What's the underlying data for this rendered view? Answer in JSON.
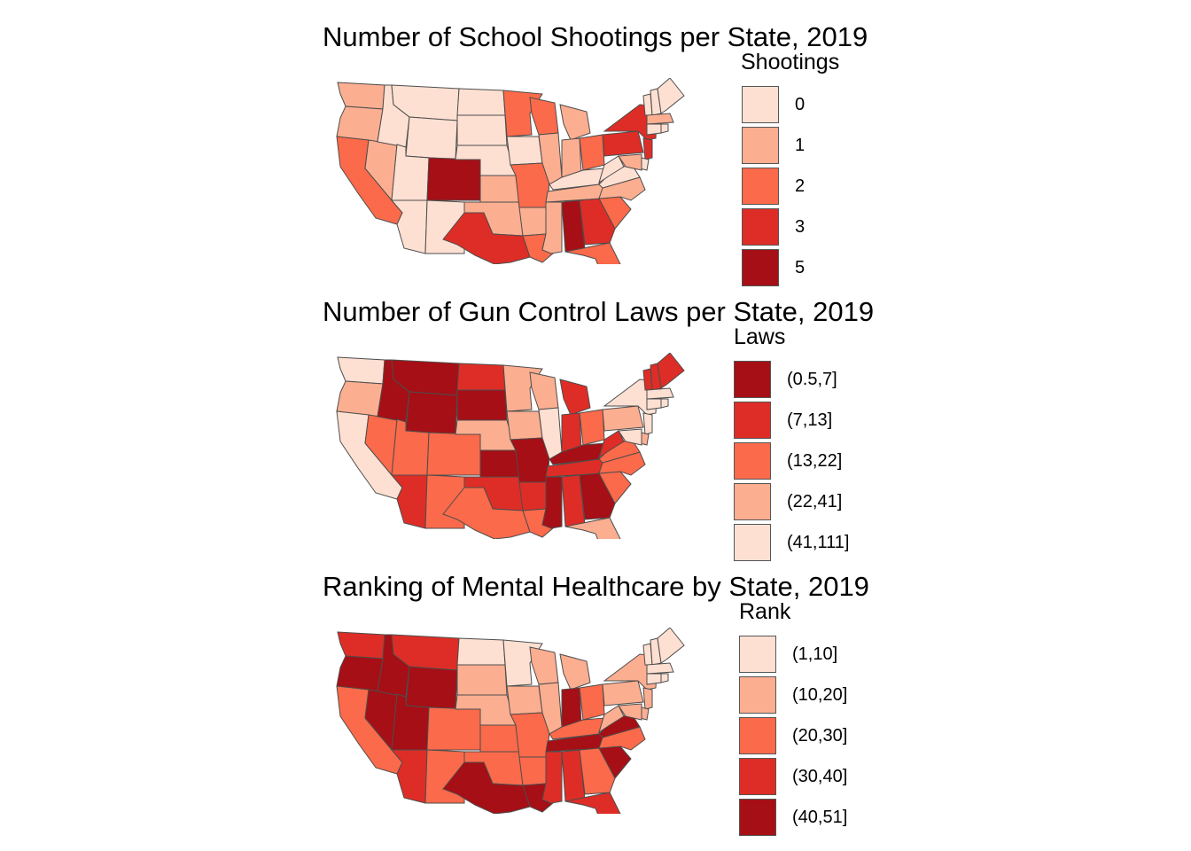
{
  "palette": [
    "#FEE0D2",
    "#FCAE91",
    "#FB6A4A",
    "#DE2D26",
    "#A50F15"
  ],
  "state_border_color": "#4d4d4d",
  "maps": [
    {
      "title": "Number of School Shootings per State, 2019",
      "legend_title": "Shootings",
      "legend": [
        {
          "label": "0",
          "color": "#FEE0D2"
        },
        {
          "label": "1",
          "color": "#FCAE91"
        },
        {
          "label": "2",
          "color": "#FB6A4A"
        },
        {
          "label": "3",
          "color": "#DE2D26"
        },
        {
          "label": "5",
          "color": "#A50F15"
        }
      ],
      "states": {
        "WA": 1,
        "OR": 1,
        "CA": 2,
        "NV": 1,
        "ID": 0,
        "MT": 0,
        "WY": 0,
        "UT": 0,
        "AZ": 0,
        "CO": 5,
        "NM": 0,
        "ND": 0,
        "SD": 0,
        "NE": 0,
        "KS": 1,
        "OK": 1,
        "TX": 3,
        "MN": 2,
        "IA": 0,
        "MO": 2,
        "AR": 1,
        "LA": 2,
        "WI": 2,
        "IL": 1,
        "MI": 1,
        "IN": 1,
        "OH": 2,
        "KY": 0,
        "TN": 1,
        "MS": 1,
        "AL": 5,
        "GA": 3,
        "FL": 2,
        "SC": 2,
        "NC": 1,
        "VA": 0,
        "WV": 0,
        "PA": 3,
        "NY": 3,
        "NJ": 3,
        "MD": 1,
        "DE": 0,
        "VT": 0,
        "NH": 0,
        "ME": 0,
        "MA": 1,
        "CT": 0,
        "RI": 0
      }
    },
    {
      "title": "Number of Gun Control Laws per State, 2019",
      "legend_title": "Laws",
      "legend": [
        {
          "label": "(0.5,7]",
          "color": "#A50F15"
        },
        {
          "label": "(7,13]",
          "color": "#DE2D26"
        },
        {
          "label": "(13,22]",
          "color": "#FB6A4A"
        },
        {
          "label": "(22,41]",
          "color": "#FCAE91"
        },
        {
          "label": "(41,111]",
          "color": "#FEE0D2"
        }
      ],
      "states": {
        "WA": "(41,111]",
        "OR": "(22,41]",
        "CA": "(41,111]",
        "NV": "(13,22]",
        "ID": "(0.5,7]",
        "MT": "(0.5,7]",
        "WY": "(0.5,7]",
        "UT": "(13,22]",
        "AZ": "(7,13]",
        "CO": "(13,22]",
        "NM": "(13,22]",
        "ND": "(7,13]",
        "SD": "(0.5,7]",
        "NE": "(22,41]",
        "KS": "(0.5,7]",
        "OK": "(7,13]",
        "TX": "(13,22]",
        "MN": "(22,41]",
        "IA": "(22,41]",
        "MO": "(0.5,7]",
        "AR": "(7,13]",
        "LA": "(13,22]",
        "WI": "(22,41]",
        "IL": "(41,111]",
        "MI": "(7,13]",
        "IN": "(7,13]",
        "OH": "(13,22]",
        "KY": "(0.5,7]",
        "TN": "(7,13]",
        "MS": "(0.5,7]",
        "AL": "(7,13]",
        "GA": "(0.5,7]",
        "FL": "(22,41]",
        "SC": "(13,22]",
        "NC": "(13,22]",
        "VA": "(13,22]",
        "WV": "(7,13]",
        "PA": "(22,41]",
        "NY": "(41,111]",
        "NJ": "(41,111]",
        "MD": "(41,111]",
        "DE": "(22,41]",
        "VT": "(7,13]",
        "NH": "(7,13]",
        "ME": "(7,13]",
        "MA": "(41,111]",
        "CT": "(41,111]",
        "RI": "(41,111]"
      }
    },
    {
      "title": "Ranking of Mental Healthcare by State, 2019",
      "legend_title": "Rank",
      "legend": [
        {
          "label": "(1,10]",
          "color": "#FEE0D2"
        },
        {
          "label": "(10,20]",
          "color": "#FCAE91"
        },
        {
          "label": "(20,30]",
          "color": "#FB6A4A"
        },
        {
          "label": "(30,40]",
          "color": "#DE2D26"
        },
        {
          "label": "(40,51]",
          "color": "#A50F15"
        }
      ],
      "states": {
        "WA": "(30,40]",
        "OR": "(40,51]",
        "CA": "(20,30]",
        "NV": "(40,51]",
        "ID": "(40,51]",
        "MT": "(30,40]",
        "WY": "(40,51]",
        "UT": "(40,51]",
        "AZ": "(30,40]",
        "CO": "(20,30]",
        "NM": "(20,30]",
        "ND": "(1,10]",
        "SD": "(10,20]",
        "NE": "(10,20]",
        "KS": "(20,30]",
        "OK": "(20,30]",
        "TX": "(40,51]",
        "MN": "(1,10]",
        "IA": "(10,20]",
        "MO": "(20,30]",
        "AR": "(20,30]",
        "LA": "(40,51]",
        "WI": "(10,20]",
        "IL": "(10,20]",
        "MI": "(10,20]",
        "IN": "(40,51]",
        "OH": "(20,30]",
        "KY": "(20,30]",
        "TN": "(40,51]",
        "MS": "(30,40]",
        "AL": "(30,40]",
        "GA": "(20,30]",
        "FL": "(30,40]",
        "SC": "(40,51]",
        "NC": "(20,30]",
        "VA": "(40,51]",
        "WV": "(10,20]",
        "PA": "(10,20]",
        "NY": "(10,20]",
        "NJ": "(10,20]",
        "MD": "(10,20]",
        "DE": "(10,20]",
        "VT": "(1,10]",
        "NH": "(1,10]",
        "ME": "(1,10]",
        "MA": "(1,10]",
        "CT": "(1,10]",
        "RI": "(1,10]"
      }
    }
  ]
}
